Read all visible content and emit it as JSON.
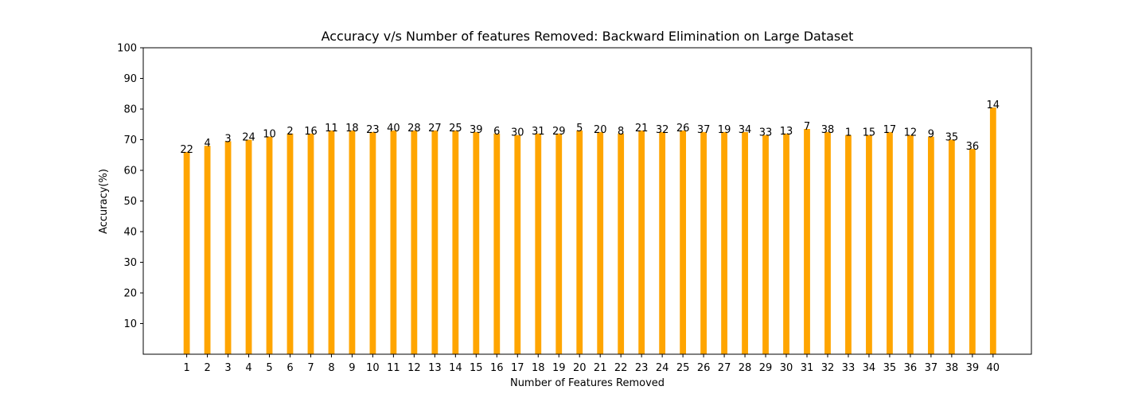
{
  "chart_data": {
    "type": "bar",
    "title": "Accuracy v/s Number of features Removed: Backward Elimination on Large Dataset",
    "xlabel": "Number of Features Removed",
    "ylabel": "Accuracy(%)",
    "ylim": [
      0,
      100
    ],
    "yticks": [
      10,
      20,
      30,
      40,
      50,
      60,
      70,
      80,
      90,
      100
    ],
    "grid": false,
    "bar_color": "#ffa500",
    "categories": [
      "1",
      "2",
      "3",
      "4",
      "5",
      "6",
      "7",
      "8",
      "9",
      "10",
      "11",
      "12",
      "13",
      "14",
      "15",
      "16",
      "17",
      "18",
      "19",
      "20",
      "21",
      "22",
      "23",
      "24",
      "25",
      "26",
      "27",
      "28",
      "29",
      "30",
      "31",
      "32",
      "33",
      "34",
      "35",
      "36",
      "37",
      "38",
      "39",
      "40"
    ],
    "values": [
      66,
      68,
      69.5,
      70,
      71,
      72,
      72,
      73,
      73,
      72.5,
      73,
      73,
      73,
      73,
      72.5,
      72,
      71.5,
      72,
      72,
      73,
      72.5,
      72,
      73,
      72.5,
      73,
      72.5,
      72.5,
      72.5,
      71.5,
      72,
      73.5,
      72.5,
      71.5,
      71.5,
      72.5,
      71.5,
      71,
      70,
      67,
      80.5
    ],
    "data_labels": [
      "22",
      "4",
      "3",
      "24",
      "10",
      "2",
      "16",
      "11",
      "18",
      "23",
      "40",
      "28",
      "27",
      "25",
      "39",
      "6",
      "30",
      "31",
      "29",
      "5",
      "20",
      "8",
      "21",
      "32",
      "26",
      "37",
      "19",
      "34",
      "33",
      "13",
      "7",
      "38",
      "1",
      "15",
      "17",
      "12",
      "9",
      "35",
      "36",
      "14"
    ]
  }
}
